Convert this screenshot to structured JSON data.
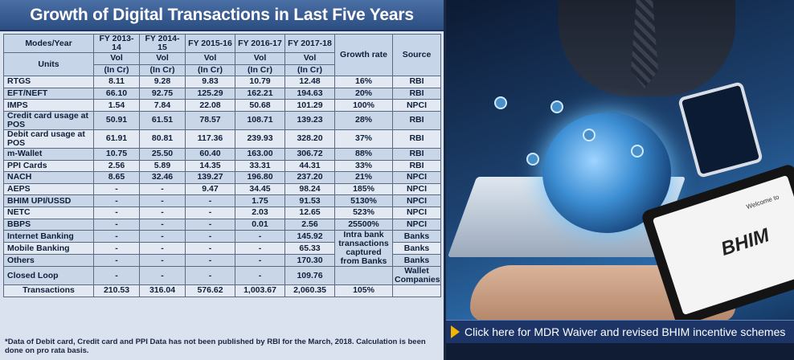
{
  "title": "Growth of Digital Transactions in Last Five Years",
  "table": {
    "header": {
      "modes_year": "Modes/Year",
      "units": "Units",
      "years": [
        "FY 2013-14",
        "FY 2014-15",
        "FY 2015-16",
        "FY 2016-17",
        "FY 2017-18"
      ],
      "vol": "Vol",
      "in_cr": "(In Cr)",
      "growth_rate": "Growth rate",
      "source": "Source"
    },
    "rows": [
      {
        "mode": "RTGS",
        "values": [
          "8.11",
          "9.28",
          "9.83",
          "10.79",
          "12.48"
        ],
        "growth": "16%",
        "source": "RBI"
      },
      {
        "mode": "EFT/NEFT",
        "values": [
          "66.10",
          "92.75",
          "125.29",
          "162.21",
          "194.63"
        ],
        "growth": "20%",
        "source": "RBI"
      },
      {
        "mode": "IMPS",
        "values": [
          "1.54",
          "7.84",
          "22.08",
          "50.68",
          "101.29"
        ],
        "growth": "100%",
        "source": "NPCI"
      },
      {
        "mode": "Credit card usage at POS",
        "values": [
          "50.91",
          "61.51",
          "78.57",
          "108.71",
          "139.23"
        ],
        "growth": "28%",
        "source": "RBI"
      },
      {
        "mode": "Debit card usage at POS",
        "values": [
          "61.91",
          "80.81",
          "117.36",
          "239.93",
          "328.20"
        ],
        "growth": "37%",
        "source": "RBI"
      },
      {
        "mode": "m-Wallet",
        "values": [
          "10.75",
          "25.50",
          "60.40",
          "163.00",
          "306.72"
        ],
        "growth": "88%",
        "source": "RBI"
      },
      {
        "mode": "PPI Cards",
        "values": [
          "2.56",
          "5.89",
          "14.35",
          "33.31",
          "44.31"
        ],
        "growth": "33%",
        "source": "RBI"
      },
      {
        "mode": "NACH",
        "values": [
          "8.65",
          "32.46",
          "139.27",
          "196.80",
          "237.20"
        ],
        "growth": "21%",
        "source": "NPCI"
      },
      {
        "mode": "AEPS",
        "values": [
          "-",
          "-",
          "9.47",
          "34.45",
          "98.24"
        ],
        "growth": "185%",
        "source": "NPCI"
      },
      {
        "mode": "BHIM UPI/USSD",
        "values": [
          "-",
          "-",
          "-",
          "1.75",
          "91.53"
        ],
        "growth": "5130%",
        "source": "NPCI"
      },
      {
        "mode": "NETC",
        "values": [
          "-",
          "-",
          "-",
          "2.03",
          "12.65"
        ],
        "growth": "523%",
        "source": "NPCI"
      },
      {
        "mode": "BBPS",
        "values": [
          "-",
          "-",
          "-",
          "0.01",
          "2.56"
        ],
        "growth": "25500%",
        "source": "NPCI"
      }
    ],
    "bank_rows": [
      {
        "mode": "Internet Banking",
        "values": [
          "-",
          "-",
          "-",
          "-",
          "145.92"
        ],
        "source": "Banks"
      },
      {
        "mode": "Mobile Banking",
        "values": [
          "-",
          "-",
          "-",
          "-",
          "65.33"
        ],
        "source": "Banks"
      },
      {
        "mode": "Others",
        "values": [
          "-",
          "-",
          "-",
          "-",
          "170.30"
        ],
        "source": "Banks"
      }
    ],
    "bank_growth_note": "Intra bank transactions captured from Banks",
    "closed_loop": {
      "mode": "Closed Loop",
      "values": [
        "-",
        "-",
        "-",
        "-",
        "109.76"
      ],
      "growth": "",
      "source": "Wallet Companies"
    },
    "total": {
      "mode": "Transactions",
      "values": [
        "210.53",
        "316.04",
        "576.62",
        "1,003.67",
        "2,060.35"
      ],
      "growth": "105%",
      "source": ""
    }
  },
  "footnote": "*Data of Debit card, Credit card and PPI Data has not been published by RBI for the March, 2018. Calculation is been done on pro rata basis.",
  "promo": {
    "welcome_text": "Welcome to",
    "logo_text": "BHIM",
    "cta_text": "Click here for MDR Waiver and revised BHIM incentive schemes"
  },
  "colors": {
    "title_bg": "#2b4d82",
    "table_bg": "#d9e2ee",
    "cta_arrow": "#f5b400"
  }
}
